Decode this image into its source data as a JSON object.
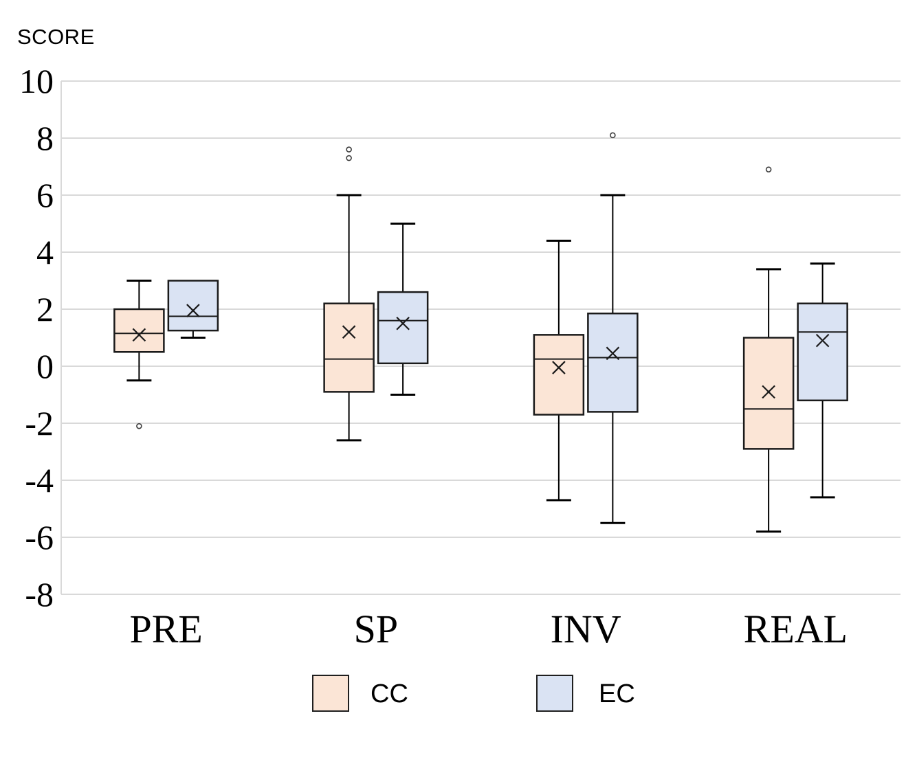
{
  "title": "SCORE",
  "legend": {
    "items": [
      {
        "label": "CC",
        "color": "#FBE5D6"
      },
      {
        "label": "EC",
        "color": "#DAE3F3"
      }
    ]
  },
  "chart_data": {
    "type": "boxplot",
    "title": "SCORE",
    "categories": [
      "PRE",
      "SP",
      "INV",
      "REAL"
    ],
    "ylim": [
      -8,
      10
    ],
    "yticks": [
      10,
      8,
      6,
      4,
      2,
      0,
      -2,
      -4,
      -6,
      -8
    ],
    "grid": true,
    "legend_position": "bottom",
    "colors": {
      "grid": "#D9D9D9",
      "box_border": "#1A1A1A",
      "whisker": "#000000",
      "median": "#1A1A1A",
      "mean_marker": "#1A1A1A",
      "outlier_stroke": "#404040",
      "outlier_fill": "#FFFFFF"
    },
    "series": [
      {
        "name": "CC",
        "fill": "#FBE5D6",
        "boxes": [
          {
            "category": "PRE",
            "min": -0.5,
            "q1": 0.5,
            "median": 1.15,
            "q3": 2.0,
            "max": 3.0,
            "mean": 1.1,
            "outliers": [
              -2.1
            ]
          },
          {
            "category": "SP",
            "min": -2.6,
            "q1": -0.9,
            "median": 0.25,
            "q3": 2.2,
            "max": 6.0,
            "mean": 1.2,
            "outliers": [
              7.3,
              7.6
            ]
          },
          {
            "category": "INV",
            "min": -4.7,
            "q1": -1.7,
            "median": 0.25,
            "q3": 1.1,
            "max": 4.4,
            "mean": -0.05,
            "outliers": []
          },
          {
            "category": "REAL",
            "min": -5.8,
            "q1": -2.9,
            "median": -1.5,
            "q3": 1.0,
            "max": 3.4,
            "mean": -0.9,
            "outliers": [
              6.9
            ]
          }
        ]
      },
      {
        "name": "EC",
        "fill": "#DAE3F3",
        "boxes": [
          {
            "category": "PRE",
            "min": 1.0,
            "q1": 1.25,
            "median": 1.75,
            "q3": 3.0,
            "max": 3.0,
            "mean": 1.95,
            "outliers": []
          },
          {
            "category": "SP",
            "min": -1.0,
            "q1": 0.1,
            "median": 1.6,
            "q3": 2.6,
            "max": 5.0,
            "mean": 1.5,
            "outliers": []
          },
          {
            "category": "INV",
            "min": -5.5,
            "q1": -1.6,
            "median": 0.3,
            "q3": 1.85,
            "max": 6.0,
            "mean": 0.45,
            "outliers": [
              8.1
            ]
          },
          {
            "category": "REAL",
            "min": -4.6,
            "q1": -1.2,
            "median": 1.2,
            "q3": 2.2,
            "max": 3.6,
            "mean": 0.9,
            "outliers": []
          }
        ]
      }
    ]
  }
}
